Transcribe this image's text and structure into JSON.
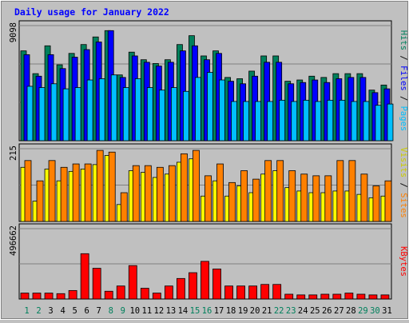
{
  "chart_data": {
    "type": "bar",
    "title": "Daily usage for January 2022",
    "x": [
      1,
      2,
      3,
      4,
      5,
      6,
      7,
      8,
      9,
      10,
      11,
      12,
      13,
      14,
      15,
      16,
      17,
      18,
      19,
      20,
      21,
      22,
      23,
      24,
      25,
      26,
      27,
      28,
      29,
      30,
      31
    ],
    "weekend_days": [
      1,
      2,
      8,
      9,
      15,
      16,
      22,
      23,
      29,
      30
    ],
    "panels": [
      {
        "name": "hits-files-pages",
        "ylabel_parts": [
          "Pages",
          "Files",
          "Hits"
        ],
        "ymax_label": "9098",
        "ylim": [
          0,
          9098
        ],
        "series": [
          {
            "name": "Hits",
            "color": "#00805c",
            "values": [
              7100,
              5300,
              7500,
              6000,
              6900,
              7600,
              8200,
              8700,
              5200,
              7000,
              6400,
              6100,
              6400,
              7600,
              8300,
              6700,
              7100,
              5000,
              4900,
              5500,
              6700,
              6700,
              4700,
              4800,
              5100,
              5000,
              5300,
              5300,
              5300,
              4000,
              4400
            ]
          },
          {
            "name": "Files",
            "color": "#0000ff",
            "values": [
              6800,
              5100,
              6800,
              5700,
              6600,
              7200,
              7800,
              8700,
              5000,
              6700,
              6200,
              5900,
              6200,
              7100,
              7500,
              6400,
              6900,
              4700,
              4500,
              5100,
              6200,
              6200,
              4500,
              4600,
              4800,
              4600,
              4900,
              5000,
              5000,
              3800,
              4100
            ]
          },
          {
            "name": "Pages",
            "color": "#00bfff",
            "values": [
              4300,
              4200,
              4500,
              4100,
              4200,
              4800,
              4900,
              5200,
              4200,
              4900,
              4200,
              4000,
              4200,
              3900,
              5000,
              5400,
              4800,
              3100,
              3100,
              3100,
              3100,
              3200,
              3100,
              3200,
              3100,
              3200,
              3200,
              3100,
              3100,
              2800,
              2900
            ]
          }
        ]
      },
      {
        "name": "visits-sites",
        "ylabel_parts": [
          "Sites",
          "Visits"
        ],
        "ymax_label": "215",
        "ylim": [
          0,
          215
        ],
        "series": [
          {
            "name": "Visits",
            "color": "#ffff00",
            "values": [
              160,
              60,
              155,
              120,
              148,
              155,
              168,
              195,
              50,
              150,
              145,
              130,
              140,
              175,
              185,
              75,
              120,
              75,
              105,
              85,
              140,
              150,
              100,
              90,
              85,
              85,
              90,
              90,
              80,
              70,
              75
            ]
          },
          {
            "name": "Sites",
            "color": "#ff8000",
            "values": [
              180,
              120,
              180,
              160,
              170,
              170,
              210,
              205,
              85,
              165,
              165,
              160,
              165,
              200,
              210,
              135,
              170,
              115,
              150,
              125,
              180,
              180,
              150,
              140,
              135,
              135,
              180,
              180,
              140,
              105,
              120
            ]
          }
        ]
      },
      {
        "name": "kbytes",
        "ylabel_parts": [
          "KBytes"
        ],
        "ymax_label": "496662",
        "ylim": [
          0,
          496662
        ],
        "series": [
          {
            "name": "KBytes",
            "color": "#ff0000",
            "values": [
              42000,
              42000,
              42000,
              38000,
              60000,
              320000,
              217000,
              55000,
              92000,
              236000,
              76000,
              42000,
              92000,
              145000,
              186000,
              266000,
              212000,
              92000,
              92000,
              92000,
              103000,
              103000,
              34000,
              29000,
              29000,
              34000,
              34000,
              42000,
              34000,
              29000,
              29000
            ]
          }
        ]
      }
    ]
  }
}
